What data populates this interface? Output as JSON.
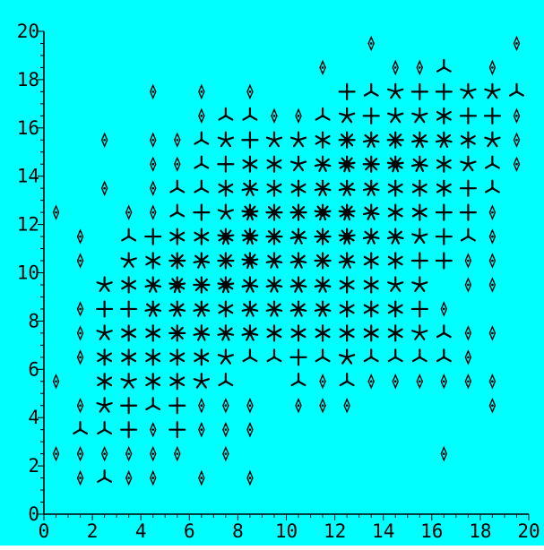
{
  "chart_data": {
    "type": "scatter",
    "marker": "sunflower-star",
    "grid": false,
    "background_color": "#00ffff",
    "marker_color": "#000000",
    "xlim": [
      0,
      20
    ],
    "ylim": [
      0,
      20
    ],
    "x_ticks": [
      "0",
      "2",
      "4",
      "6",
      "8",
      "10",
      "12",
      "14",
      "16",
      "18",
      "20"
    ],
    "y_ticks": [
      "0",
      "2",
      "4",
      "6",
      "8",
      "10",
      "12",
      "14",
      "16",
      "18",
      "20"
    ],
    "title": "",
    "xlabel": "",
    "ylabel": "",
    "rows": [
      {
        "y": 1.5,
        "cells": [
          [
            1.5,
            2
          ],
          [
            2.5,
            3
          ],
          [
            3.5,
            2
          ],
          [
            4.5,
            2
          ],
          [
            6.5,
            2
          ],
          [
            8.5,
            2
          ]
        ]
      },
      {
        "y": 2.5,
        "cells": [
          [
            0.5,
            2
          ],
          [
            1.5,
            2
          ],
          [
            2.5,
            2
          ],
          [
            3.5,
            2
          ],
          [
            4.5,
            2
          ],
          [
            5.5,
            2
          ],
          [
            7.5,
            2
          ],
          [
            16.5,
            2
          ]
        ]
      },
      {
        "y": 3.5,
        "cells": [
          [
            1.5,
            3
          ],
          [
            2.5,
            3
          ],
          [
            3.5,
            4
          ],
          [
            4.5,
            2
          ],
          [
            5.5,
            4
          ],
          [
            6.5,
            2
          ],
          [
            7.5,
            2
          ],
          [
            8.5,
            2
          ]
        ]
      },
      {
        "y": 4.5,
        "cells": [
          [
            1.5,
            2
          ],
          [
            2.5,
            5
          ],
          [
            3.5,
            4
          ],
          [
            4.5,
            3
          ],
          [
            5.5,
            4
          ],
          [
            6.5,
            2
          ],
          [
            7.5,
            2
          ],
          [
            8.5,
            2
          ],
          [
            10.5,
            2
          ],
          [
            11.5,
            2
          ],
          [
            12.5,
            2
          ],
          [
            18.5,
            2
          ]
        ]
      },
      {
        "y": 5.5,
        "cells": [
          [
            0.5,
            2
          ],
          [
            2.5,
            6
          ],
          [
            3.5,
            5
          ],
          [
            4.5,
            6
          ],
          [
            5.5,
            6
          ],
          [
            6.5,
            5
          ],
          [
            7.5,
            3
          ],
          [
            10.5,
            3
          ],
          [
            11.5,
            2
          ],
          [
            12.5,
            3
          ],
          [
            13.5,
            2
          ],
          [
            14.5,
            2
          ],
          [
            15.5,
            2
          ],
          [
            16.5,
            2
          ],
          [
            17.5,
            2
          ],
          [
            18.5,
            2
          ]
        ]
      },
      {
        "y": 6.5,
        "cells": [
          [
            1.5,
            2
          ],
          [
            2.5,
            6
          ],
          [
            3.5,
            6
          ],
          [
            4.5,
            6
          ],
          [
            5.5,
            6
          ],
          [
            6.5,
            6
          ],
          [
            7.5,
            5
          ],
          [
            8.5,
            3
          ],
          [
            9.5,
            3
          ],
          [
            10.5,
            4
          ],
          [
            11.5,
            3
          ],
          [
            12.5,
            5
          ],
          [
            13.5,
            3
          ],
          [
            14.5,
            3
          ],
          [
            15.5,
            3
          ],
          [
            16.5,
            3
          ],
          [
            17.5,
            2
          ]
        ]
      },
      {
        "y": 7.5,
        "cells": [
          [
            1.5,
            2
          ],
          [
            2.5,
            5
          ],
          [
            3.5,
            6
          ],
          [
            4.5,
            6
          ],
          [
            5.5,
            8
          ],
          [
            6.5,
            7
          ],
          [
            7.5,
            7
          ],
          [
            8.5,
            7
          ],
          [
            9.5,
            6
          ],
          [
            10.5,
            6
          ],
          [
            11.5,
            6
          ],
          [
            12.5,
            6
          ],
          [
            13.5,
            6
          ],
          [
            14.5,
            6
          ],
          [
            15.5,
            5
          ],
          [
            16.5,
            3
          ],
          [
            17.5,
            2
          ],
          [
            18.5,
            2
          ]
        ]
      },
      {
        "y": 8.5,
        "cells": [
          [
            1.5,
            2
          ],
          [
            2.5,
            4
          ],
          [
            3.5,
            4
          ],
          [
            4.5,
            7
          ],
          [
            5.5,
            7
          ],
          [
            6.5,
            7
          ],
          [
            7.5,
            6
          ],
          [
            8.5,
            7
          ],
          [
            9.5,
            7
          ],
          [
            10.5,
            7
          ],
          [
            11.5,
            7
          ],
          [
            12.5,
            6
          ],
          [
            13.5,
            6
          ],
          [
            14.5,
            6
          ],
          [
            15.5,
            4
          ],
          [
            16.5,
            2
          ]
        ]
      },
      {
        "y": 9.5,
        "cells": [
          [
            2.5,
            5
          ],
          [
            3.5,
            6
          ],
          [
            4.5,
            7
          ],
          [
            5.5,
            9
          ],
          [
            6.5,
            8
          ],
          [
            7.5,
            9
          ],
          [
            8.5,
            7
          ],
          [
            9.5,
            7
          ],
          [
            10.5,
            7
          ],
          [
            11.5,
            7
          ],
          [
            12.5,
            6
          ],
          [
            13.5,
            6
          ],
          [
            14.5,
            5
          ],
          [
            15.5,
            5
          ],
          [
            17.5,
            2
          ],
          [
            18.5,
            2
          ]
        ]
      },
      {
        "y": 10.5,
        "cells": [
          [
            1.5,
            2
          ],
          [
            3.5,
            5
          ],
          [
            4.5,
            6
          ],
          [
            5.5,
            8
          ],
          [
            6.5,
            7
          ],
          [
            7.5,
            8
          ],
          [
            8.5,
            9
          ],
          [
            9.5,
            7
          ],
          [
            10.5,
            7
          ],
          [
            11.5,
            8
          ],
          [
            12.5,
            7
          ],
          [
            13.5,
            6
          ],
          [
            14.5,
            6
          ],
          [
            15.5,
            4
          ],
          [
            16.5,
            4
          ],
          [
            17.5,
            2
          ],
          [
            18.5,
            2
          ]
        ]
      },
      {
        "y": 11.5,
        "cells": [
          [
            1.5,
            2
          ],
          [
            3.5,
            3
          ],
          [
            4.5,
            4
          ],
          [
            5.5,
            6
          ],
          [
            6.5,
            6
          ],
          [
            7.5,
            9
          ],
          [
            8.5,
            9
          ],
          [
            9.5,
            8
          ],
          [
            10.5,
            7
          ],
          [
            11.5,
            8
          ],
          [
            12.5,
            9
          ],
          [
            13.5,
            7
          ],
          [
            14.5,
            7
          ],
          [
            15.5,
            5
          ],
          [
            16.5,
            4
          ],
          [
            17.5,
            3
          ],
          [
            18.5,
            2
          ]
        ]
      },
      {
        "y": 12.5,
        "cells": [
          [
            0.5,
            2
          ],
          [
            3.5,
            2
          ],
          [
            4.5,
            2
          ],
          [
            5.5,
            3
          ],
          [
            6.5,
            4
          ],
          [
            7.5,
            5
          ],
          [
            8.5,
            9
          ],
          [
            9.5,
            8
          ],
          [
            10.5,
            8
          ],
          [
            11.5,
            9
          ],
          [
            12.5,
            9
          ],
          [
            13.5,
            7
          ],
          [
            14.5,
            6
          ],
          [
            15.5,
            6
          ],
          [
            16.5,
            4
          ],
          [
            17.5,
            4
          ],
          [
            18.5,
            2
          ]
        ]
      },
      {
        "y": 13.5,
        "cells": [
          [
            2.5,
            2
          ],
          [
            4.5,
            2
          ],
          [
            5.5,
            3
          ],
          [
            6.5,
            3
          ],
          [
            7.5,
            6
          ],
          [
            8.5,
            7
          ],
          [
            9.5,
            6
          ],
          [
            10.5,
            6
          ],
          [
            11.5,
            7
          ],
          [
            12.5,
            7
          ],
          [
            13.5,
            7
          ],
          [
            14.5,
            6
          ],
          [
            15.5,
            6
          ],
          [
            16.5,
            6
          ],
          [
            17.5,
            4
          ],
          [
            18.5,
            3
          ]
        ]
      },
      {
        "y": 14.5,
        "cells": [
          [
            4.5,
            2
          ],
          [
            5.5,
            2
          ],
          [
            6.5,
            3
          ],
          [
            7.5,
            4
          ],
          [
            8.5,
            6
          ],
          [
            9.5,
            6
          ],
          [
            10.5,
            5
          ],
          [
            11.5,
            7
          ],
          [
            12.5,
            9
          ],
          [
            13.5,
            8
          ],
          [
            14.5,
            9
          ],
          [
            15.5,
            7
          ],
          [
            16.5,
            6
          ],
          [
            17.5,
            5
          ],
          [
            18.5,
            3
          ],
          [
            19.5,
            2
          ]
        ]
      },
      {
        "y": 15.5,
        "cells": [
          [
            2.5,
            2
          ],
          [
            4.5,
            2
          ],
          [
            5.5,
            2
          ],
          [
            6.5,
            3
          ],
          [
            7.5,
            5
          ],
          [
            8.5,
            4
          ],
          [
            9.5,
            5
          ],
          [
            10.5,
            5
          ],
          [
            11.5,
            6
          ],
          [
            12.5,
            8
          ],
          [
            13.5,
            7
          ],
          [
            14.5,
            8
          ],
          [
            15.5,
            7
          ],
          [
            16.5,
            7
          ],
          [
            17.5,
            6
          ],
          [
            18.5,
            5
          ],
          [
            19.5,
            2
          ]
        ]
      },
      {
        "y": 16.5,
        "cells": [
          [
            6.5,
            2
          ],
          [
            7.5,
            3
          ],
          [
            8.5,
            3
          ],
          [
            9.5,
            2
          ],
          [
            10.5,
            2
          ],
          [
            11.5,
            3
          ],
          [
            12.5,
            5
          ],
          [
            13.5,
            4
          ],
          [
            14.5,
            5
          ],
          [
            15.5,
            5
          ],
          [
            16.5,
            6
          ],
          [
            17.5,
            4
          ],
          [
            18.5,
            4
          ],
          [
            19.5,
            2
          ]
        ]
      },
      {
        "y": 17.5,
        "cells": [
          [
            4.5,
            2
          ],
          [
            6.5,
            2
          ],
          [
            8.5,
            2
          ],
          [
            12.5,
            4
          ],
          [
            13.5,
            3
          ],
          [
            14.5,
            5
          ],
          [
            15.5,
            4
          ],
          [
            16.5,
            4
          ],
          [
            17.5,
            5
          ],
          [
            18.5,
            5
          ],
          [
            19.5,
            3
          ]
        ]
      },
      {
        "y": 18.5,
        "cells": [
          [
            11.5,
            2
          ],
          [
            14.5,
            2
          ],
          [
            15.5,
            2
          ],
          [
            16.5,
            3
          ],
          [
            18.5,
            2
          ]
        ]
      },
      {
        "y": 19.5,
        "cells": [
          [
            13.5,
            2
          ],
          [
            19.5,
            2
          ]
        ]
      }
    ]
  }
}
